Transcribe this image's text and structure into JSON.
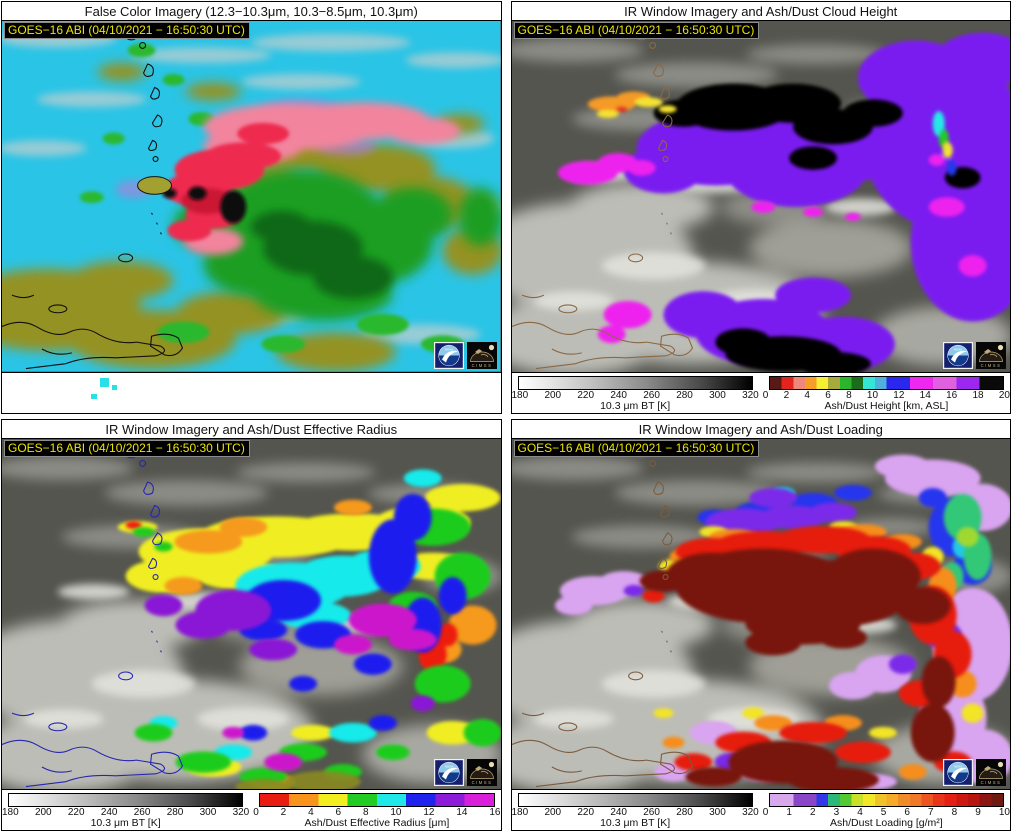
{
  "panels": [
    {
      "title": "False Color Imagery (12.3−10.3μm, 10.3−8.5μm, 10.3μm)",
      "timestamp": "GOES−16 ABI (04/10/2021 − 16:50:30 UTC)"
    },
    {
      "title": "IR Window Imagery and Ash/Dust Cloud Height",
      "timestamp": "GOES−16 ABI (04/10/2021 − 16:50:30 UTC)",
      "bt_colorbar": {
        "label": "10.3 μm BT [K]",
        "min": 180,
        "max": 320,
        "ticks": [
          "180",
          "200",
          "220",
          "240",
          "260",
          "280",
          "300",
          "320"
        ]
      },
      "product_colorbar": {
        "label": "Ash/Dust Height [km, ASL]",
        "min": 0,
        "max": 20,
        "ticks": [
          "0",
          "2",
          "4",
          "6",
          "8",
          "10",
          "12",
          "14",
          "16",
          "18",
          "20"
        ],
        "palette": [
          "#571a14",
          "#e52420",
          "#ef8878",
          "#f89e28",
          "#f5f032",
          "#a8aa3a",
          "#2ab52a",
          "#1a6e1a",
          "#35e5d5",
          "#4fb0dc",
          "#2a28ee",
          "#2a28ee",
          "#ee28ee",
          "#ee28ee",
          "#e060e0",
          "#e060e0",
          "#9a28ee",
          "#9a28ee",
          "#0a0a0a",
          "#0a0a0a"
        ]
      }
    },
    {
      "title": "IR Window Imagery and Ash/Dust Effective Radius",
      "timestamp": "GOES−16 ABI (04/10/2021 − 16:50:30 UTC)",
      "bt_colorbar": {
        "label": "10.3 μm BT [K]",
        "min": 180,
        "max": 320,
        "ticks": [
          "180",
          "200",
          "220",
          "240",
          "260",
          "280",
          "300",
          "320"
        ]
      },
      "product_colorbar": {
        "label": "Ash/Dust Effective Radius [μm]",
        "min": 0,
        "max": 16,
        "ticks": [
          "0",
          "2",
          "4",
          "6",
          "8",
          "10",
          "12",
          "14",
          "16"
        ],
        "palette": [
          "#e81c10",
          "#f8941c",
          "#f2ee20",
          "#22cc22",
          "#20e8e8",
          "#2022ee",
          "#8c1cd8",
          "#d820d8"
        ]
      }
    },
    {
      "title": "IR Window Imagery and Ash/Dust Loading",
      "timestamp": "GOES−16 ABI (04/10/2021 − 16:50:30 UTC)",
      "bt_colorbar": {
        "label": "10.3 μm BT [K]",
        "min": 180,
        "max": 320,
        "ticks": [
          "180",
          "200",
          "220",
          "240",
          "260",
          "280",
          "300",
          "320"
        ]
      },
      "product_colorbar": {
        "label": "Ash/Dust Loading [g/m²]",
        "min": 0,
        "max": 10,
        "ticks": [
          "0",
          "1",
          "2",
          "3",
          "4",
          "5",
          "6",
          "7",
          "8",
          "9",
          "10"
        ],
        "palette": [
          "#d8a8ec",
          "#d8a8ec",
          "#8a46c8",
          "#8a46c8",
          "#3038e8",
          "#2cb878",
          "#55c832",
          "#cbe028",
          "#f2e828",
          "#f0c428",
          "#f5aa28",
          "#f08c28",
          "#f07828",
          "#ec5420",
          "#e83418",
          "#e42014",
          "#cc1810",
          "#b81410",
          "#8c1612",
          "#6e1a12"
        ]
      }
    }
  ],
  "logos": {
    "noaa": "NOAA",
    "cimss": "CIMSS"
  },
  "colors": {
    "timestamp_fg": "#ece400",
    "timestamp_bg": "#000000",
    "panel_border": "#000000",
    "falsecolor_ocean": "#2ac4e6",
    "ash_plume_red": "#ee2c50",
    "height_purple": "#7a1ef0",
    "loading_maroon": "#78180f"
  }
}
